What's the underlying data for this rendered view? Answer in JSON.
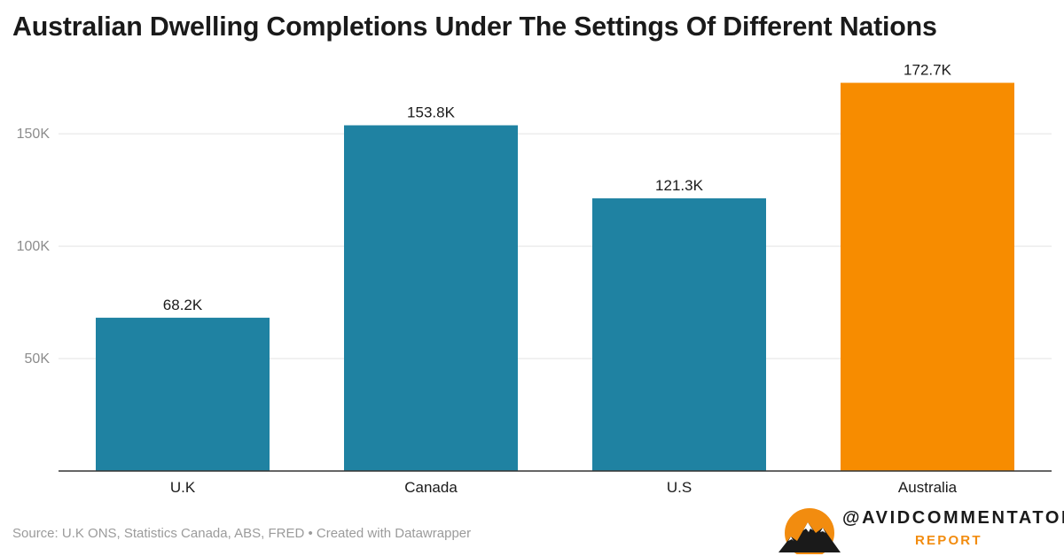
{
  "title": "Australian Dwelling Completions Under The Settings Of Different Nations",
  "chart_data": {
    "type": "bar",
    "title": "Australian Dwelling Completions Under The Settings Of Different Nations",
    "categories": [
      "U.K",
      "Canada",
      "U.S",
      "Australia"
    ],
    "values": [
      68200,
      153800,
      121300,
      172700
    ],
    "value_labels": [
      "68.2K",
      "153.8K",
      "121.3K",
      "172.7K"
    ],
    "colors": [
      "#1f82a2",
      "#1f82a2",
      "#1f82a2",
      "#f78c00"
    ],
    "yticks": [
      50000,
      100000,
      150000
    ],
    "ytick_labels": [
      "50K",
      "100K",
      "150K"
    ],
    "ylim": [
      0,
      180000
    ],
    "xlabel": "",
    "ylabel": "",
    "grid": true,
    "legend": "none"
  },
  "footer": {
    "source": "Source: U.K ONS, Statistics Canada, ABS, FRED • Created with Datawrapper",
    "brand_handle": "@AVIDCOMMENTATOR",
    "brand_sub": "REPORT"
  },
  "brand_colors": {
    "orange": "#f28c0f",
    "dark": "#1a1a1a"
  }
}
